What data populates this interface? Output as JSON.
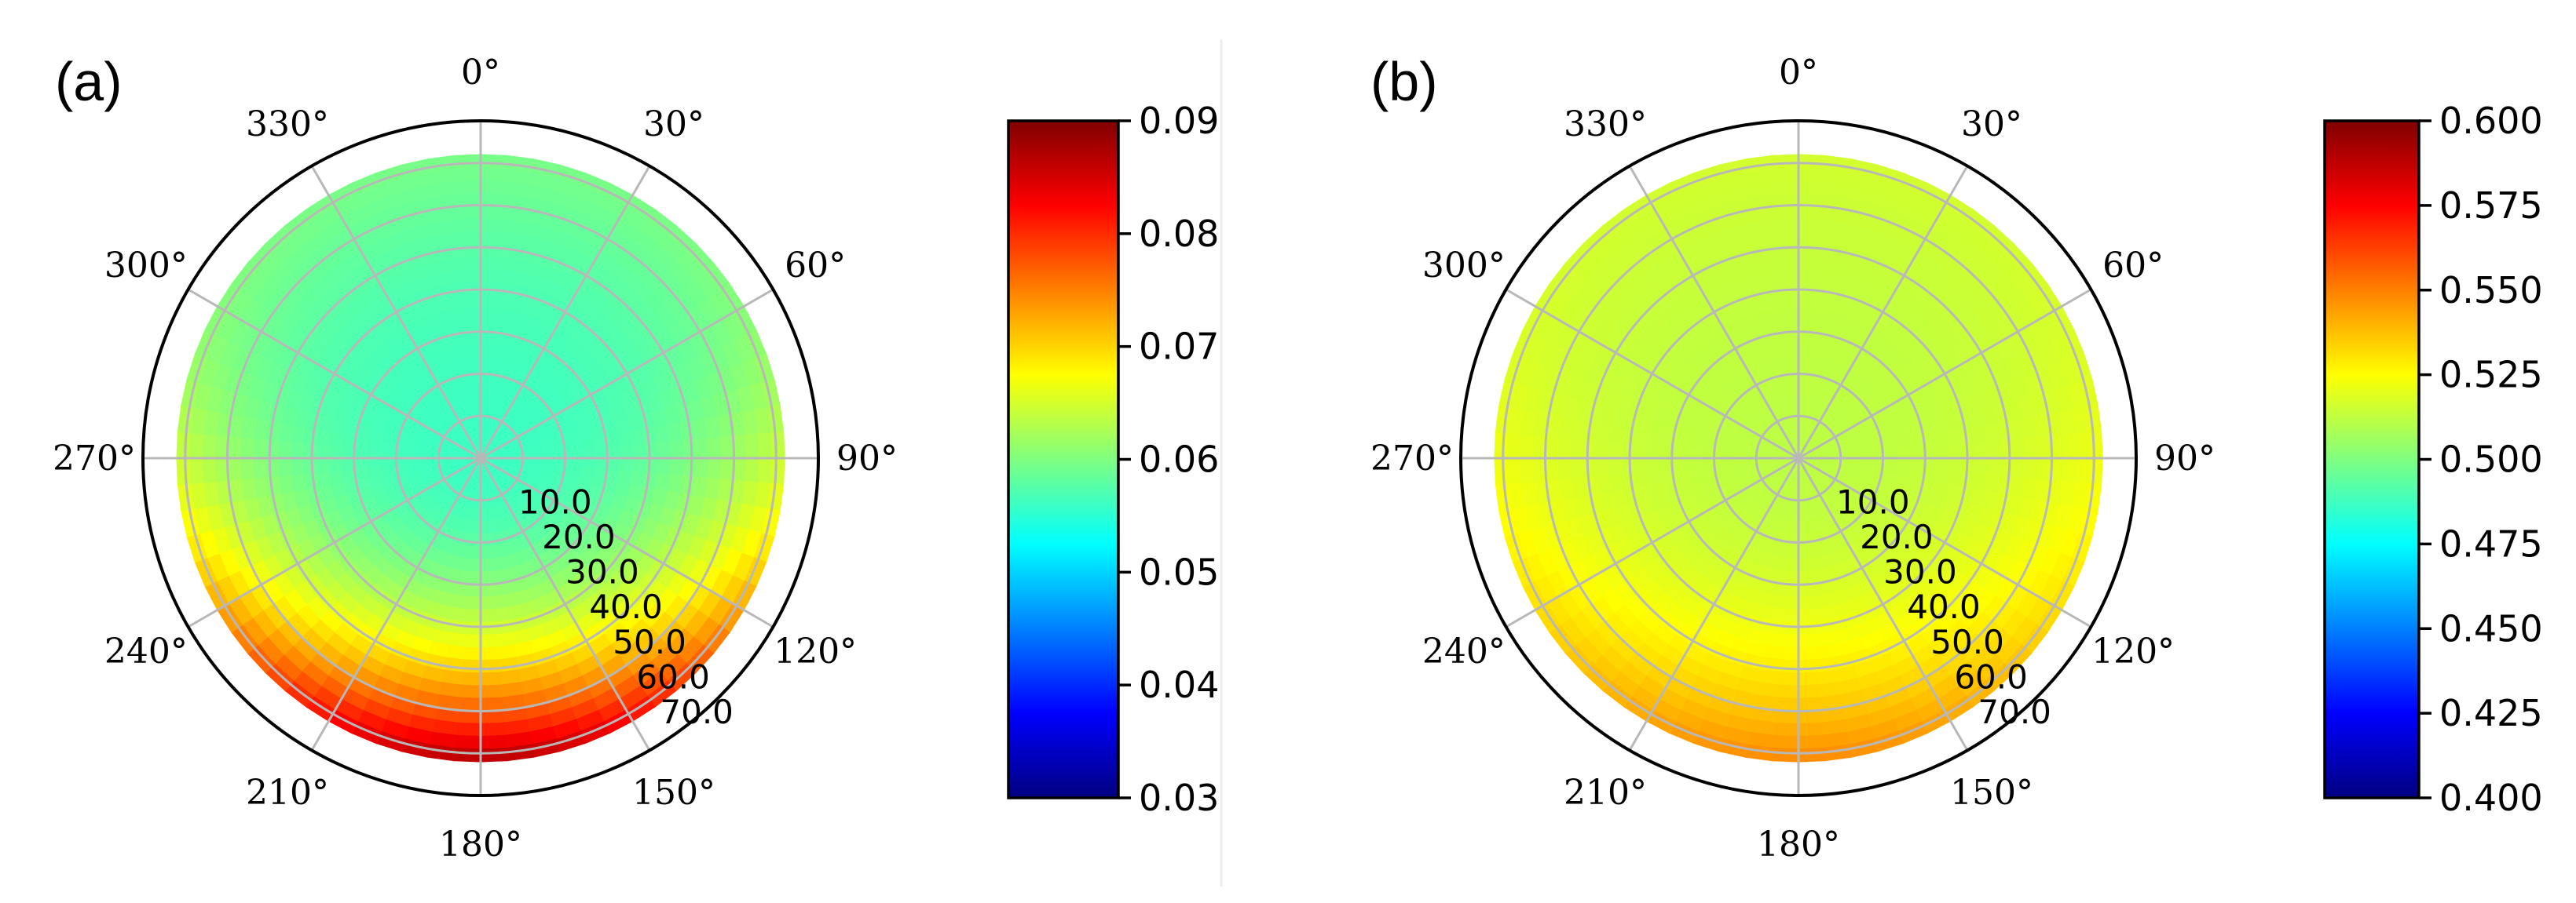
{
  "chart_data": [
    {
      "type": "heatmap",
      "panel_label": "(a)",
      "projection": "polar",
      "theta_zero": "top",
      "theta_direction": "clockwise",
      "theta_ticks": [
        "0°",
        "30°",
        "60°",
        "90°",
        "120°",
        "150°",
        "180°",
        "210°",
        "240°",
        "270°",
        "300°",
        "330°"
      ],
      "r_ticks": [
        "10.0",
        "20.0",
        "30.0",
        "40.0",
        "50.0",
        "60.0",
        "70.0"
      ],
      "r_tick_angle_deg": 146,
      "rlim": [
        0,
        80
      ],
      "data_rmax": 72,
      "grid": true,
      "colormap": "jet",
      "colorbar": {
        "range": [
          0.03,
          0.09
        ],
        "ticks": [
          "0.03",
          "0.04",
          "0.05",
          "0.06",
          "0.07",
          "0.08",
          "0.09"
        ],
        "tick_values": [
          0.03,
          0.04,
          0.05,
          0.06,
          0.07,
          0.08,
          0.09
        ]
      },
      "field": {
        "center_value": 0.056,
        "max_value": 0.087,
        "peak_theta_deg": 180,
        "description_model": "value rises toward rim near 180°"
      },
      "samples": [
        {
          "theta": 0,
          "r": 70,
          "value": 0.058
        },
        {
          "theta": 90,
          "r": 70,
          "value": 0.061
        },
        {
          "theta": 120,
          "r": 70,
          "value": 0.078
        },
        {
          "theta": 180,
          "r": 0,
          "value": 0.056
        },
        {
          "theta": 180,
          "r": 40,
          "value": 0.064
        },
        {
          "theta": 180,
          "r": 70,
          "value": 0.087
        },
        {
          "theta": 240,
          "r": 70,
          "value": 0.078
        },
        {
          "theta": 270,
          "r": 70,
          "value": 0.061
        }
      ]
    },
    {
      "type": "heatmap",
      "panel_label": "(b)",
      "projection": "polar",
      "theta_zero": "top",
      "theta_direction": "clockwise",
      "theta_ticks": [
        "0°",
        "30°",
        "60°",
        "90°",
        "120°",
        "150°",
        "180°",
        "210°",
        "240°",
        "270°",
        "300°",
        "330°"
      ],
      "r_ticks": [
        "10.0",
        "20.0",
        "30.0",
        "40.0",
        "50.0",
        "60.0",
        "70.0"
      ],
      "r_tick_angle_deg": 146,
      "rlim": [
        0,
        80
      ],
      "data_rmax": 72,
      "grid": true,
      "colormap": "jet",
      "colorbar": {
        "range": [
          0.4,
          0.6
        ],
        "ticks": [
          "0.400",
          "0.425",
          "0.450",
          "0.475",
          "0.500",
          "0.525",
          "0.550",
          "0.575",
          "0.600"
        ],
        "tick_values": [
          0.4,
          0.425,
          0.45,
          0.475,
          0.5,
          0.525,
          0.55,
          0.575,
          0.6
        ]
      },
      "field": {
        "center_value": 0.512,
        "max_value": 0.548,
        "peak_theta_deg": 180,
        "description_model": "value rises toward rim near 180°"
      },
      "samples": [
        {
          "theta": 0,
          "r": 70,
          "value": 0.51
        },
        {
          "theta": 90,
          "r": 70,
          "value": 0.518
        },
        {
          "theta": 180,
          "r": 0,
          "value": 0.512
        },
        {
          "theta": 180,
          "r": 70,
          "value": 0.548
        },
        {
          "theta": 270,
          "r": 70,
          "value": 0.518
        }
      ]
    }
  ]
}
